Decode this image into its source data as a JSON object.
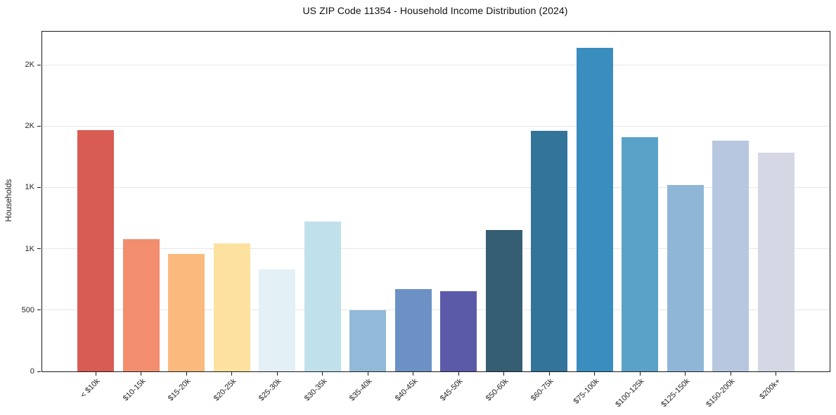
{
  "chart_data": {
    "type": "bar",
    "title": "US ZIP Code 11354 - Household Income Distribution (2024)",
    "xlabel": "",
    "ylabel": "Households",
    "categories": [
      "< $10k",
      "$10-15k",
      "$15-20k",
      "$20-25k",
      "$25-30k",
      "$30-35k",
      "$35-40k",
      "$40-45k",
      "$45-50k",
      "$50-60k",
      "$60-75k",
      "$75-100k",
      "$100-125k",
      "$125-150k",
      "$150-200k",
      "$200k+"
    ],
    "values": [
      1970,
      1080,
      955,
      1045,
      830,
      1220,
      500,
      670,
      655,
      1150,
      1960,
      2640,
      1910,
      1520,
      1880,
      1785
    ],
    "bar_colors": [
      "#d95c54",
      "#f28d6d",
      "#fab97d",
      "#fce29e",
      "#e3f1f6",
      "#c0e0eb",
      "#90bad7",
      "#6c91c4",
      "#5b5aa9",
      "#365e73",
      "#33749b",
      "#3a8dbf",
      "#5ba2c9",
      "#90b6d7",
      "#b7c7df",
      "#d6d7e5"
    ],
    "ylim": [
      0,
      2770
    ],
    "yticks": [
      {
        "value": 0,
        "label": "0"
      },
      {
        "value": 500,
        "label": "500"
      },
      {
        "value": 1000,
        "label": "1K"
      },
      {
        "value": 1500,
        "label": "1K"
      },
      {
        "value": 2000,
        "label": "2K"
      },
      {
        "value": 2500,
        "label": "2K"
      }
    ],
    "grid": true,
    "legend": "none",
    "axis_color": "#1a1a1a",
    "grid_color": "#e7e7e7"
  }
}
